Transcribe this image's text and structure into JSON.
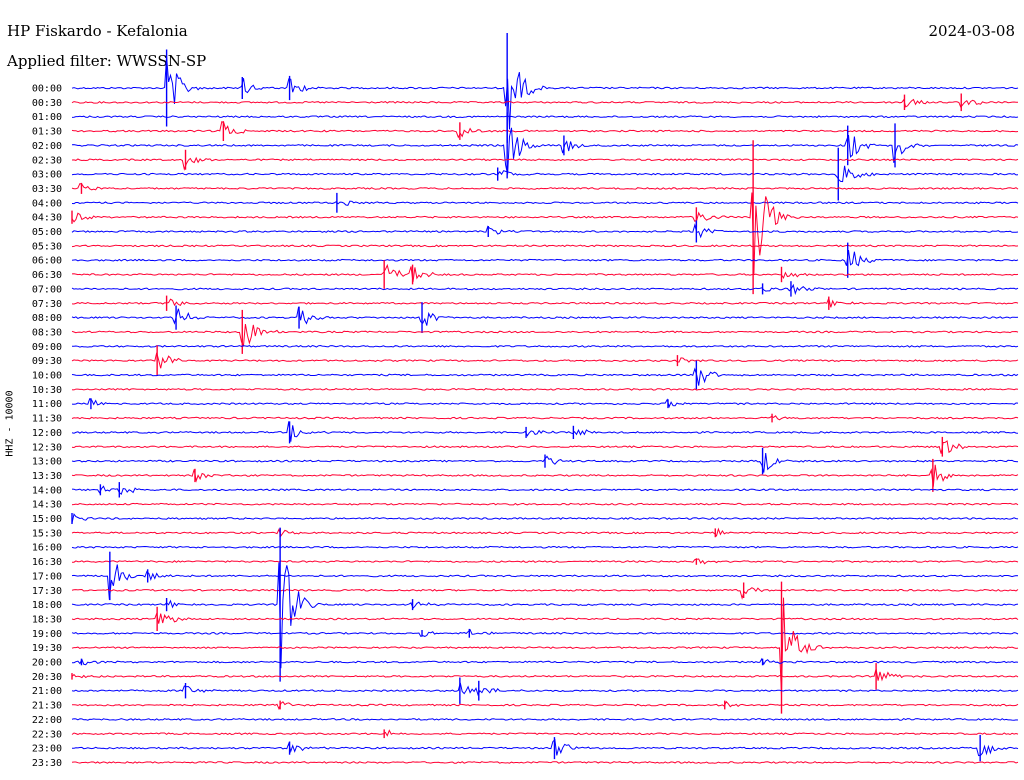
{
  "header": {
    "station": "HP Fiskardo - Kefalonia",
    "filter": "Applied filter: WWSSN-SP",
    "date": "2024-03-08"
  },
  "channel_label": "HHZ - 10000",
  "colors": {
    "even": "#0000ff",
    "odd": "#ff0033"
  },
  "chart_data": {
    "type": "line",
    "title": "HP Fiskardo - Kefalonia",
    "ylabel": "HHZ - 10000",
    "rows": [
      "00:00",
      "00:30",
      "01:00",
      "01:30",
      "02:00",
      "02:30",
      "03:00",
      "03:30",
      "04:00",
      "04:30",
      "05:00",
      "05:30",
      "06:00",
      "06:30",
      "07:00",
      "07:30",
      "08:00",
      "08:30",
      "09:00",
      "09:30",
      "10:00",
      "10:30",
      "11:00",
      "11:30",
      "12:00",
      "12:30",
      "13:00",
      "13:30",
      "14:00",
      "14:30",
      "15:00",
      "15:30",
      "16:00",
      "16:30",
      "17:00",
      "17:30",
      "18:00",
      "18:30",
      "19:00",
      "19:30",
      "20:00",
      "20:30",
      "21:00",
      "21:30",
      "22:00",
      "22:30",
      "23:00",
      "23:30"
    ],
    "events": [
      {
        "row": 0,
        "t": 0.1,
        "amp": 3.5
      },
      {
        "row": 0,
        "t": 0.18,
        "amp": 1.0
      },
      {
        "row": 0,
        "t": 0.23,
        "amp": 1.1
      },
      {
        "row": 0,
        "t": 0.46,
        "amp": 5.0
      },
      {
        "row": 1,
        "t": 0.94,
        "amp": 0.8
      },
      {
        "row": 1,
        "t": 0.88,
        "amp": 0.7
      },
      {
        "row": 3,
        "t": 0.16,
        "amp": 0.9
      },
      {
        "row": 3,
        "t": 0.41,
        "amp": 0.8
      },
      {
        "row": 4,
        "t": 0.46,
        "amp": 3.0
      },
      {
        "row": 4,
        "t": 0.52,
        "amp": 0.9
      },
      {
        "row": 4,
        "t": 0.82,
        "amp": 1.8
      },
      {
        "row": 4,
        "t": 0.87,
        "amp": 2.0
      },
      {
        "row": 5,
        "t": 0.12,
        "amp": 0.9
      },
      {
        "row": 6,
        "t": 0.81,
        "amp": 2.4
      },
      {
        "row": 6,
        "t": 0.45,
        "amp": 0.6
      },
      {
        "row": 7,
        "t": 0.01,
        "amp": 0.5
      },
      {
        "row": 8,
        "t": 0.28,
        "amp": 0.9
      },
      {
        "row": 9,
        "t": 0.0,
        "amp": 0.6
      },
      {
        "row": 9,
        "t": 0.72,
        "amp": 7.0
      },
      {
        "row": 9,
        "t": 0.66,
        "amp": 0.9
      },
      {
        "row": 10,
        "t": 0.66,
        "amp": 1.0
      },
      {
        "row": 10,
        "t": 0.44,
        "amp": 0.5
      },
      {
        "row": 12,
        "t": 0.82,
        "amp": 1.6
      },
      {
        "row": 13,
        "t": 0.33,
        "amp": 1.3
      },
      {
        "row": 13,
        "t": 0.36,
        "amp": 0.9
      },
      {
        "row": 13,
        "t": 0.75,
        "amp": 0.7
      },
      {
        "row": 14,
        "t": 0.76,
        "amp": 0.7
      },
      {
        "row": 14,
        "t": 0.73,
        "amp": 0.5
      },
      {
        "row": 15,
        "t": 0.1,
        "amp": 0.7
      },
      {
        "row": 15,
        "t": 0.8,
        "amp": 0.6
      },
      {
        "row": 16,
        "t": 0.11,
        "amp": 1.1
      },
      {
        "row": 16,
        "t": 0.24,
        "amp": 1.0
      },
      {
        "row": 16,
        "t": 0.37,
        "amp": 1.4
      },
      {
        "row": 17,
        "t": 0.18,
        "amp": 2.0
      },
      {
        "row": 19,
        "t": 0.09,
        "amp": 1.4
      },
      {
        "row": 19,
        "t": 0.64,
        "amp": 0.5
      },
      {
        "row": 20,
        "t": 0.66,
        "amp": 1.3
      },
      {
        "row": 22,
        "t": 0.02,
        "amp": 0.5
      },
      {
        "row": 22,
        "t": 0.63,
        "amp": 0.4
      },
      {
        "row": 23,
        "t": 0.74,
        "amp": 0.4
      },
      {
        "row": 24,
        "t": 0.23,
        "amp": 1.0
      },
      {
        "row": 24,
        "t": 0.48,
        "amp": 0.5
      },
      {
        "row": 24,
        "t": 0.53,
        "amp": 0.6
      },
      {
        "row": 25,
        "t": 0.92,
        "amp": 0.9
      },
      {
        "row": 26,
        "t": 0.73,
        "amp": 1.2
      },
      {
        "row": 26,
        "t": 0.5,
        "amp": 0.6
      },
      {
        "row": 27,
        "t": 0.13,
        "amp": 0.6
      },
      {
        "row": 27,
        "t": 0.91,
        "amp": 1.5
      },
      {
        "row": 28,
        "t": 0.03,
        "amp": 0.5
      },
      {
        "row": 28,
        "t": 0.05,
        "amp": 0.7
      },
      {
        "row": 30,
        "t": 0.0,
        "amp": 0.5
      },
      {
        "row": 31,
        "t": 0.22,
        "amp": 0.4
      },
      {
        "row": 31,
        "t": 0.68,
        "amp": 0.4
      },
      {
        "row": 33,
        "t": 0.66,
        "amp": 0.3
      },
      {
        "row": 34,
        "t": 0.04,
        "amp": 2.2
      },
      {
        "row": 34,
        "t": 0.08,
        "amp": 0.6
      },
      {
        "row": 35,
        "t": 0.71,
        "amp": 0.7
      },
      {
        "row": 36,
        "t": 0.22,
        "amp": 7.0
      },
      {
        "row": 36,
        "t": 0.1,
        "amp": 0.6
      },
      {
        "row": 36,
        "t": 0.36,
        "amp": 0.5
      },
      {
        "row": 37,
        "t": 0.09,
        "amp": 1.1
      },
      {
        "row": 38,
        "t": 0.37,
        "amp": 0.3
      },
      {
        "row": 38,
        "t": 0.42,
        "amp": 0.4
      },
      {
        "row": 39,
        "t": 0.75,
        "amp": 6.0
      },
      {
        "row": 40,
        "t": 0.01,
        "amp": 0.3
      },
      {
        "row": 40,
        "t": 0.73,
        "amp": 0.3
      },
      {
        "row": 41,
        "t": 0.0,
        "amp": 0.3
      },
      {
        "row": 41,
        "t": 0.85,
        "amp": 1.2
      },
      {
        "row": 42,
        "t": 0.12,
        "amp": 0.7
      },
      {
        "row": 42,
        "t": 0.41,
        "amp": 1.2
      },
      {
        "row": 42,
        "t": 0.43,
        "amp": 0.9
      },
      {
        "row": 43,
        "t": 0.22,
        "amp": 0.4
      },
      {
        "row": 43,
        "t": 0.69,
        "amp": 0.4
      },
      {
        "row": 45,
        "t": 0.33,
        "amp": 0.4
      },
      {
        "row": 46,
        "t": 0.23,
        "amp": 0.6
      },
      {
        "row": 46,
        "t": 0.51,
        "amp": 1.0
      },
      {
        "row": 46,
        "t": 0.96,
        "amp": 1.2
      }
    ]
  }
}
